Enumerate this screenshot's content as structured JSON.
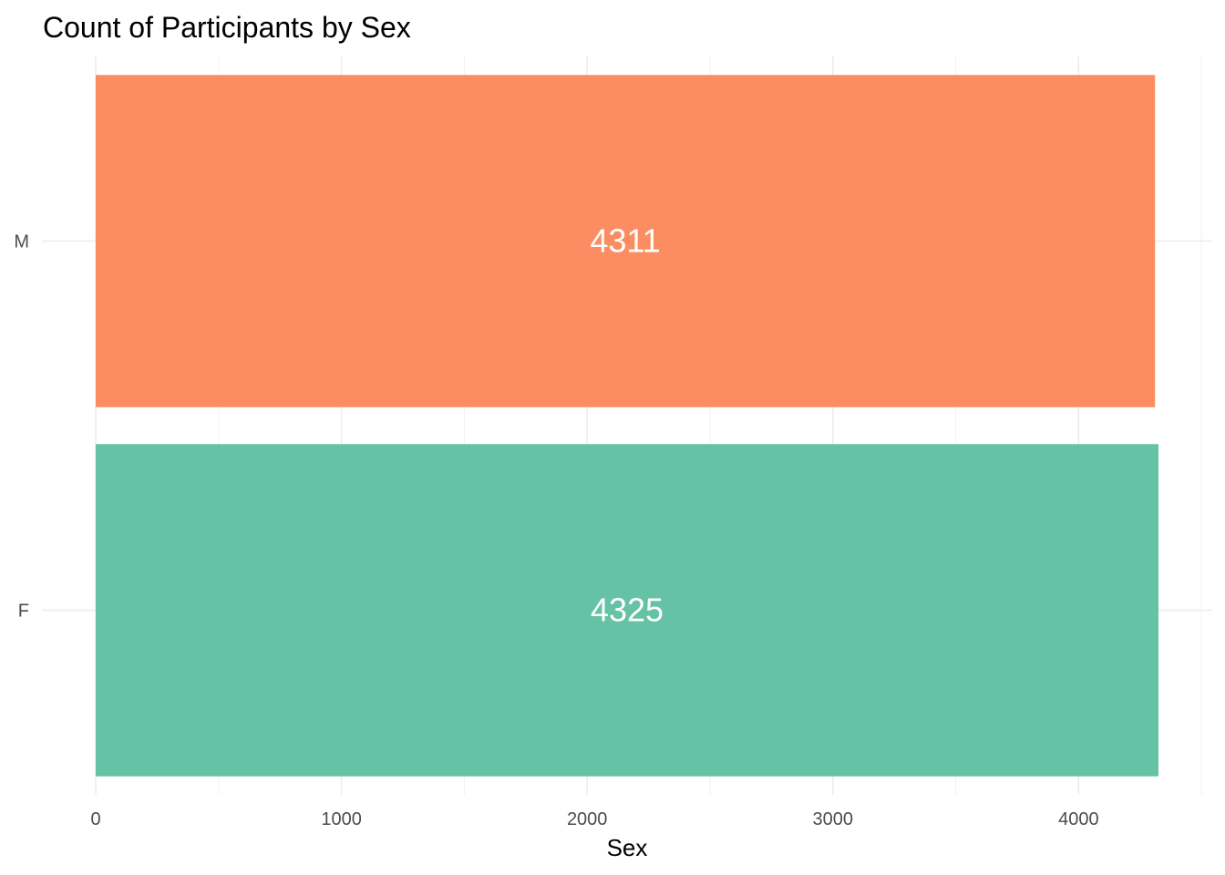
{
  "chart_data": {
    "type": "bar",
    "orientation": "horizontal",
    "title": "Count of Participants by Sex",
    "xlabel": "Sex",
    "ylabel": "",
    "categories": [
      "F",
      "M"
    ],
    "values": [
      4325,
      4311
    ],
    "data_labels": [
      "4325",
      "4311"
    ],
    "colors": [
      "#66c2a5",
      "#fc8d62"
    ],
    "xlim": [
      0,
      4325
    ],
    "x_ticks": [
      0,
      1000,
      2000,
      3000,
      4000
    ],
    "x_tick_labels": [
      "0",
      "1000",
      "2000",
      "3000",
      "4000"
    ],
    "grid": true,
    "legend": "none"
  }
}
